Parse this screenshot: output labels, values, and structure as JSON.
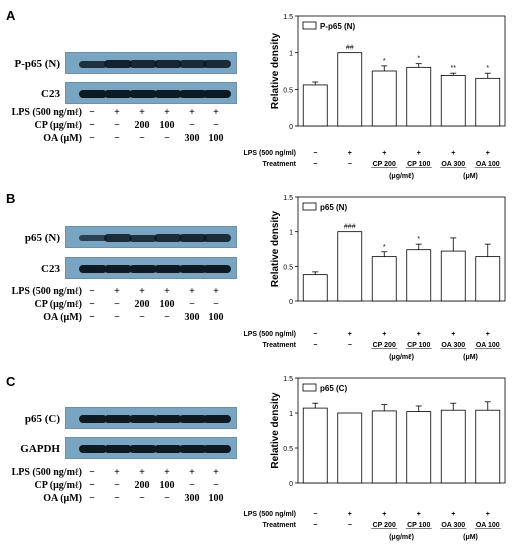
{
  "lane_treatments": {
    "lps": {
      "label": "LPS (500 ng/mℓ)",
      "cells": [
        "−",
        "+",
        "+",
        "+",
        "+",
        "+"
      ]
    },
    "cp": {
      "label": "CP (μg/mℓ)",
      "cells": [
        "−",
        "−",
        "200",
        "100",
        "−",
        "−"
      ]
    },
    "oa": {
      "label": "OA (μM)",
      "cells": [
        "−",
        "−",
        "−",
        "−",
        "300",
        "100"
      ]
    }
  },
  "chart_axis": {
    "ylabel": "Relative density",
    "yticks": [
      "0",
      "0.5",
      "1",
      "1.5"
    ],
    "lps_label": "LPS (500 ng/ml)",
    "treatment_label": "Treatment",
    "lps_row": [
      "−",
      "+",
      "+",
      "+",
      "+",
      "+"
    ],
    "treatment_row": [
      "−",
      "−",
      "CP 200",
      "CP 100",
      "OA 300",
      "OA 100"
    ],
    "unit_cp": "(μg/mℓ)",
    "unit_oa": "(μM)"
  },
  "panels": [
    {
      "letter": "A",
      "blots": [
        "P-p65 (N)",
        "C23"
      ],
      "blot_bands": [
        [
          0.75,
          0.9,
          0.85,
          0.85,
          0.8,
          0.8
        ],
        [
          1,
          1,
          1,
          1,
          1,
          1
        ]
      ]
    },
    {
      "letter": "B",
      "blots": [
        "p65 (N)",
        "C23"
      ],
      "blot_bands": [
        [
          0.55,
          0.8,
          0.75,
          0.8,
          0.85,
          0.8
        ],
        [
          1,
          1,
          1,
          1,
          1,
          1
        ]
      ]
    },
    {
      "letter": "C",
      "blots": [
        "p65 (C)",
        "GAPDH"
      ],
      "blot_bands": [
        [
          1,
          1,
          1,
          1,
          1,
          1
        ],
        [
          1,
          1,
          1,
          1,
          1,
          1
        ]
      ]
    }
  ],
  "chart_data": [
    {
      "type": "bar",
      "legend": "P-p65 (N)",
      "categories": [
        "−/−",
        "+/−",
        "+/CP 200",
        "+/CP 100",
        "+/OA 300",
        "+/OA 100"
      ],
      "values": [
        0.56,
        1.0,
        0.75,
        0.8,
        0.69,
        0.65
      ],
      "errors": [
        0.04,
        0.0,
        0.07,
        0.05,
        0.03,
        0.07
      ],
      "annotations": [
        "",
        "##",
        "*",
        "*",
        "**",
        "*"
      ],
      "ylim": [
        0,
        1.5
      ]
    },
    {
      "type": "bar",
      "legend": "p65 (N)",
      "categories": [
        "−/−",
        "+/−",
        "+/CP 200",
        "+/CP 100",
        "+/OA 300",
        "+/OA 100"
      ],
      "values": [
        0.38,
        1.0,
        0.64,
        0.74,
        0.72,
        0.64
      ],
      "errors": [
        0.04,
        0.0,
        0.07,
        0.08,
        0.19,
        0.18
      ],
      "annotations": [
        "",
        "###",
        "*",
        "*",
        "",
        ""
      ],
      "ylim": [
        0,
        1.5
      ]
    },
    {
      "type": "bar",
      "legend": "p65 (C)",
      "categories": [
        "−/−",
        "+/−",
        "+/CP 200",
        "+/CP 100",
        "+/OA 300",
        "+/OA 100"
      ],
      "values": [
        1.07,
        1.0,
        1.03,
        1.02,
        1.04,
        1.04
      ],
      "errors": [
        0.07,
        0.0,
        0.09,
        0.08,
        0.1,
        0.12
      ],
      "annotations": [
        "",
        "",
        "",
        "",
        "",
        ""
      ],
      "ylim": [
        0,
        1.5
      ]
    }
  ]
}
